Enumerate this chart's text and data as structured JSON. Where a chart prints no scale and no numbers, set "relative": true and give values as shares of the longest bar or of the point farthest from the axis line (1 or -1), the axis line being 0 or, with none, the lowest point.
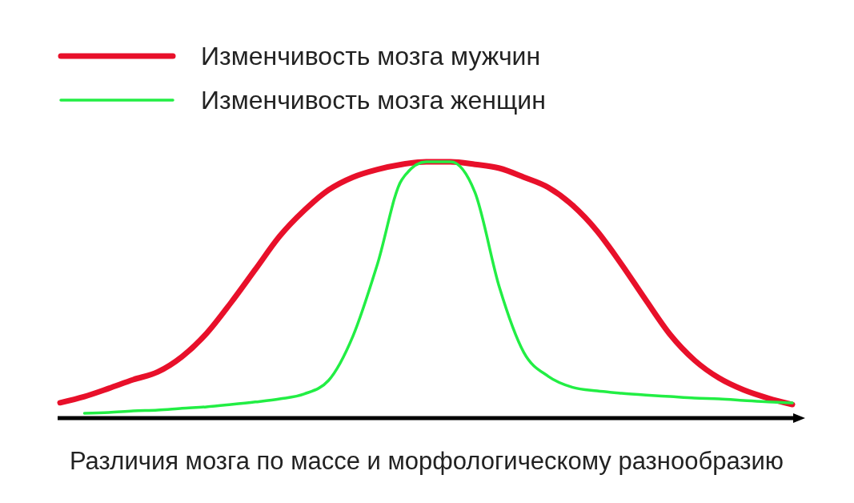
{
  "chart_data": {
    "type": "line",
    "relative": true,
    "xlabel": "Различия мозга по массе и морфологическому разнообразию",
    "legend": "top left",
    "categories": [
      null,
      null,
      null,
      null,
      null,
      null,
      null,
      null,
      null,
      null,
      null,
      null,
      null,
      null,
      null,
      null,
      null,
      null,
      null,
      null,
      null,
      null,
      null,
      null,
      null,
      null,
      null,
      null,
      null,
      null,
      null
    ],
    "series": [
      {
        "name": "Изменчивость мозга мужчин",
        "color": "#e8102a",
        "values": [
          0.06,
          0.084,
          0.116,
          0.15,
          0.18,
          0.24,
          0.33,
          0.45,
          0.58,
          0.71,
          0.81,
          0.89,
          0.94,
          0.97,
          0.99,
          1.0,
          1.0,
          0.99,
          0.975,
          0.94,
          0.9,
          0.83,
          0.73,
          0.6,
          0.46,
          0.325,
          0.225,
          0.156,
          0.11,
          0.078,
          0.053
        ]
      },
      {
        "name": "Изменчивость мозга женщин",
        "color": "#22ee44",
        "values": [
          null,
          0.019,
          0.022,
          0.028,
          0.031,
          0.038,
          0.044,
          0.053,
          0.063,
          0.075,
          0.094,
          0.147,
          0.32,
          0.6,
          0.93,
          1.0,
          1.0,
          0.88,
          0.51,
          0.256,
          0.163,
          0.12,
          0.106,
          0.097,
          0.09,
          0.084,
          0.078,
          0.075,
          0.069,
          0.063,
          0.059
        ]
      }
    ]
  }
}
